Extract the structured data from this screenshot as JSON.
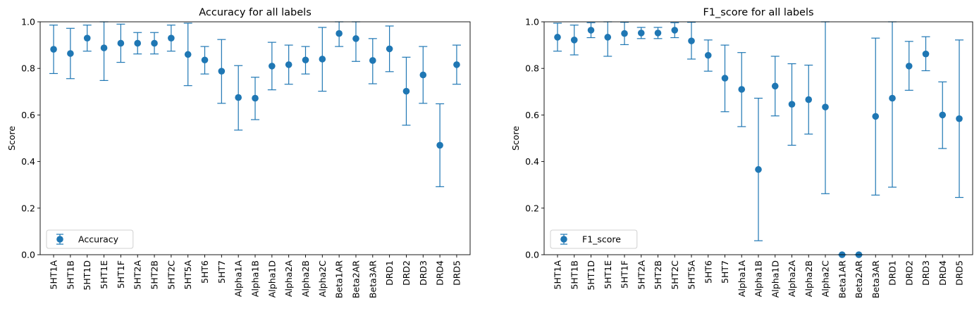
{
  "chart_data": [
    {
      "type": "scatter",
      "title": "Accuracy for all labels",
      "xlabel": "",
      "ylabel": "Score",
      "ylim": [
        0,
        1.0
      ],
      "yticks": [
        "0.0",
        "0.2",
        "0.4",
        "0.6",
        "0.8",
        "1.0"
      ],
      "grid": false,
      "legend": "lower-left",
      "categories": [
        "5HT1A",
        "5HT1B",
        "5HT1D",
        "5HT1E",
        "5HT1F",
        "5HT2A",
        "5HT2B",
        "5HT2C",
        "5HT5A",
        "5HT6",
        "5HT7",
        "Alpha1A",
        "Alpha1B",
        "Alpha1D",
        "Alpha2A",
        "Alpha2B",
        "Alpha2C",
        "Beta1AR",
        "Beta2AR",
        "Beta3AR",
        "DRD1",
        "DRD2",
        "DRD3",
        "DRD4",
        "DRD5"
      ],
      "series": [
        {
          "name": "Accuracy",
          "color": "#1f77b4",
          "values": [
            0.882,
            0.864,
            0.93,
            0.888,
            0.908,
            0.908,
            0.908,
            0.93,
            0.86,
            0.836,
            0.788,
            0.675,
            0.672,
            0.81,
            0.816,
            0.836,
            0.84,
            0.95,
            0.928,
            0.834,
            0.884,
            0.702,
            0.772,
            0.47,
            0.816
          ],
          "lower": [
            0.778,
            0.756,
            0.874,
            0.748,
            0.826,
            0.862,
            0.862,
            0.874,
            0.726,
            0.776,
            0.65,
            0.535,
            0.58,
            0.708,
            0.732,
            0.776,
            0.702,
            0.894,
            0.83,
            0.734,
            0.786,
            0.556,
            0.65,
            0.292,
            0.732
          ],
          "upper": [
            0.986,
            0.972,
            0.986,
            1.0,
            0.99,
            0.954,
            0.954,
            0.986,
            0.994,
            0.894,
            0.924,
            0.812,
            0.762,
            0.912,
            0.9,
            0.894,
            0.976,
            1.0,
            1.0,
            0.928,
            0.982,
            0.848,
            0.894,
            0.648,
            0.9
          ]
        }
      ]
    },
    {
      "type": "scatter",
      "title": "F1_score for all labels",
      "xlabel": "",
      "ylabel": "Score",
      "ylim": [
        0,
        1.0
      ],
      "yticks": [
        "0.0",
        "0.2",
        "0.4",
        "0.6",
        "0.8",
        "1.0"
      ],
      "grid": false,
      "legend": "lower-left",
      "categories": [
        "5HT1A",
        "5HT1B",
        "5HT1D",
        "5HT1E",
        "5HT1F",
        "5HT2A",
        "5HT2B",
        "5HT2C",
        "5HT5A",
        "5HT6",
        "5HT7",
        "Alpha1A",
        "Alpha1B",
        "Alpha1D",
        "Alpha2A",
        "Alpha2B",
        "Alpha2C",
        "Beta1AR",
        "Beta2AR",
        "Beta3AR",
        "DRD1",
        "DRD2",
        "DRD3",
        "DRD4",
        "DRD5"
      ],
      "series": [
        {
          "name": "F1_score",
          "color": "#1f77b4",
          "values": [
            0.934,
            0.922,
            0.964,
            0.934,
            0.95,
            0.952,
            0.952,
            0.964,
            0.918,
            0.856,
            0.758,
            0.71,
            0.366,
            0.724,
            0.646,
            0.666,
            0.634,
            0.0,
            0.0,
            0.594,
            0.672,
            0.81,
            0.862,
            0.6,
            0.584
          ],
          "lower": [
            0.874,
            0.858,
            0.932,
            0.852,
            0.902,
            0.928,
            0.928,
            0.932,
            0.84,
            0.788,
            0.614,
            0.55,
            0.06,
            0.596,
            0.47,
            0.518,
            0.262,
            0.0,
            0.0,
            0.256,
            0.29,
            0.706,
            0.79,
            0.456,
            0.246
          ],
          "upper": [
            0.994,
            0.986,
            0.996,
            1.0,
            0.998,
            0.976,
            0.976,
            0.996,
            0.998,
            0.922,
            0.9,
            0.868,
            0.672,
            0.852,
            0.82,
            0.814,
            1.0,
            0.0,
            0.0,
            0.93,
            1.0,
            0.916,
            0.936,
            0.742,
            0.922
          ]
        }
      ]
    }
  ]
}
